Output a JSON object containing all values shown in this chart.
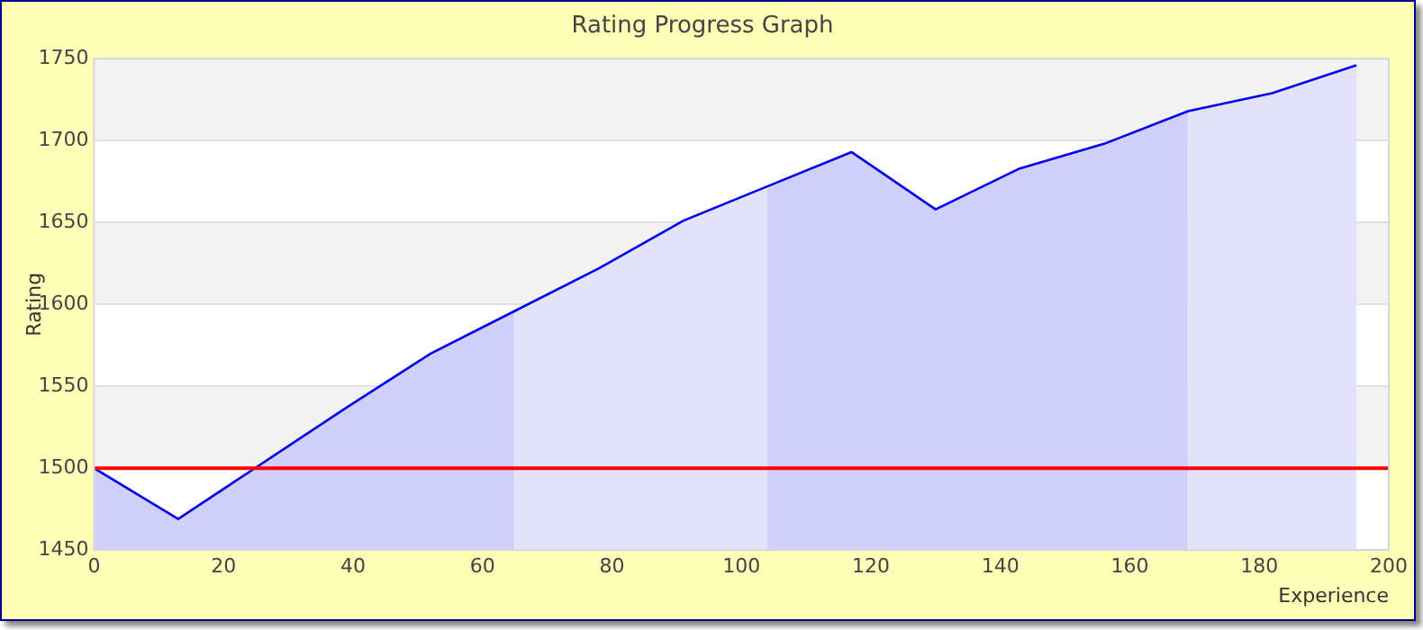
{
  "chart_data": {
    "type": "area",
    "title": "Rating Progress Graph",
    "xlabel": "Experience",
    "ylabel": "Rating",
    "series": [
      {
        "color": "#d0d0fa",
        "x": [
          0,
          13,
          26,
          39,
          52,
          65
        ],
        "values": [
          1500,
          1469,
          1503,
          1537,
          1570,
          1596
        ]
      },
      {
        "color": "#e2e2fa",
        "x": [
          65,
          78,
          91,
          104
        ],
        "values": [
          1596,
          1622,
          1651,
          1672
        ]
      },
      {
        "color": "#d0d0fa",
        "x": [
          104,
          117,
          130,
          143,
          156,
          169
        ],
        "values": [
          1672,
          1693,
          1658,
          1683,
          1698,
          1718
        ]
      },
      {
        "color": "#e2e2fa",
        "x": [
          169,
          182,
          195
        ],
        "values": [
          1718,
          1729,
          1746
        ]
      },
      {
        "type": "line",
        "color": "#0000ee",
        "x": [
          0,
          13,
          26,
          39,
          52,
          65,
          78,
          91,
          104,
          117,
          130,
          143,
          156,
          169,
          182,
          195
        ],
        "values": [
          1500,
          1469,
          1503,
          1537,
          1570,
          1596,
          1622,
          1651,
          1672,
          1693,
          1658,
          1683,
          1698,
          1718,
          1729,
          1746
        ]
      }
    ],
    "xlim": [
      0,
      200
    ],
    "xticks": [
      0,
      20,
      40,
      60,
      80,
      100,
      120,
      140,
      160,
      180,
      200
    ],
    "ylim": [
      1450,
      1750
    ],
    "yticks": [
      1450,
      1500,
      1550,
      1600,
      1650,
      1700,
      1750
    ],
    "ref_lines": [
      {
        "axis": "y",
        "value": 1500,
        "color": "#ff0000"
      }
    ],
    "grid": "y",
    "legend": false,
    "marker": "none",
    "line_style": "solid"
  }
}
